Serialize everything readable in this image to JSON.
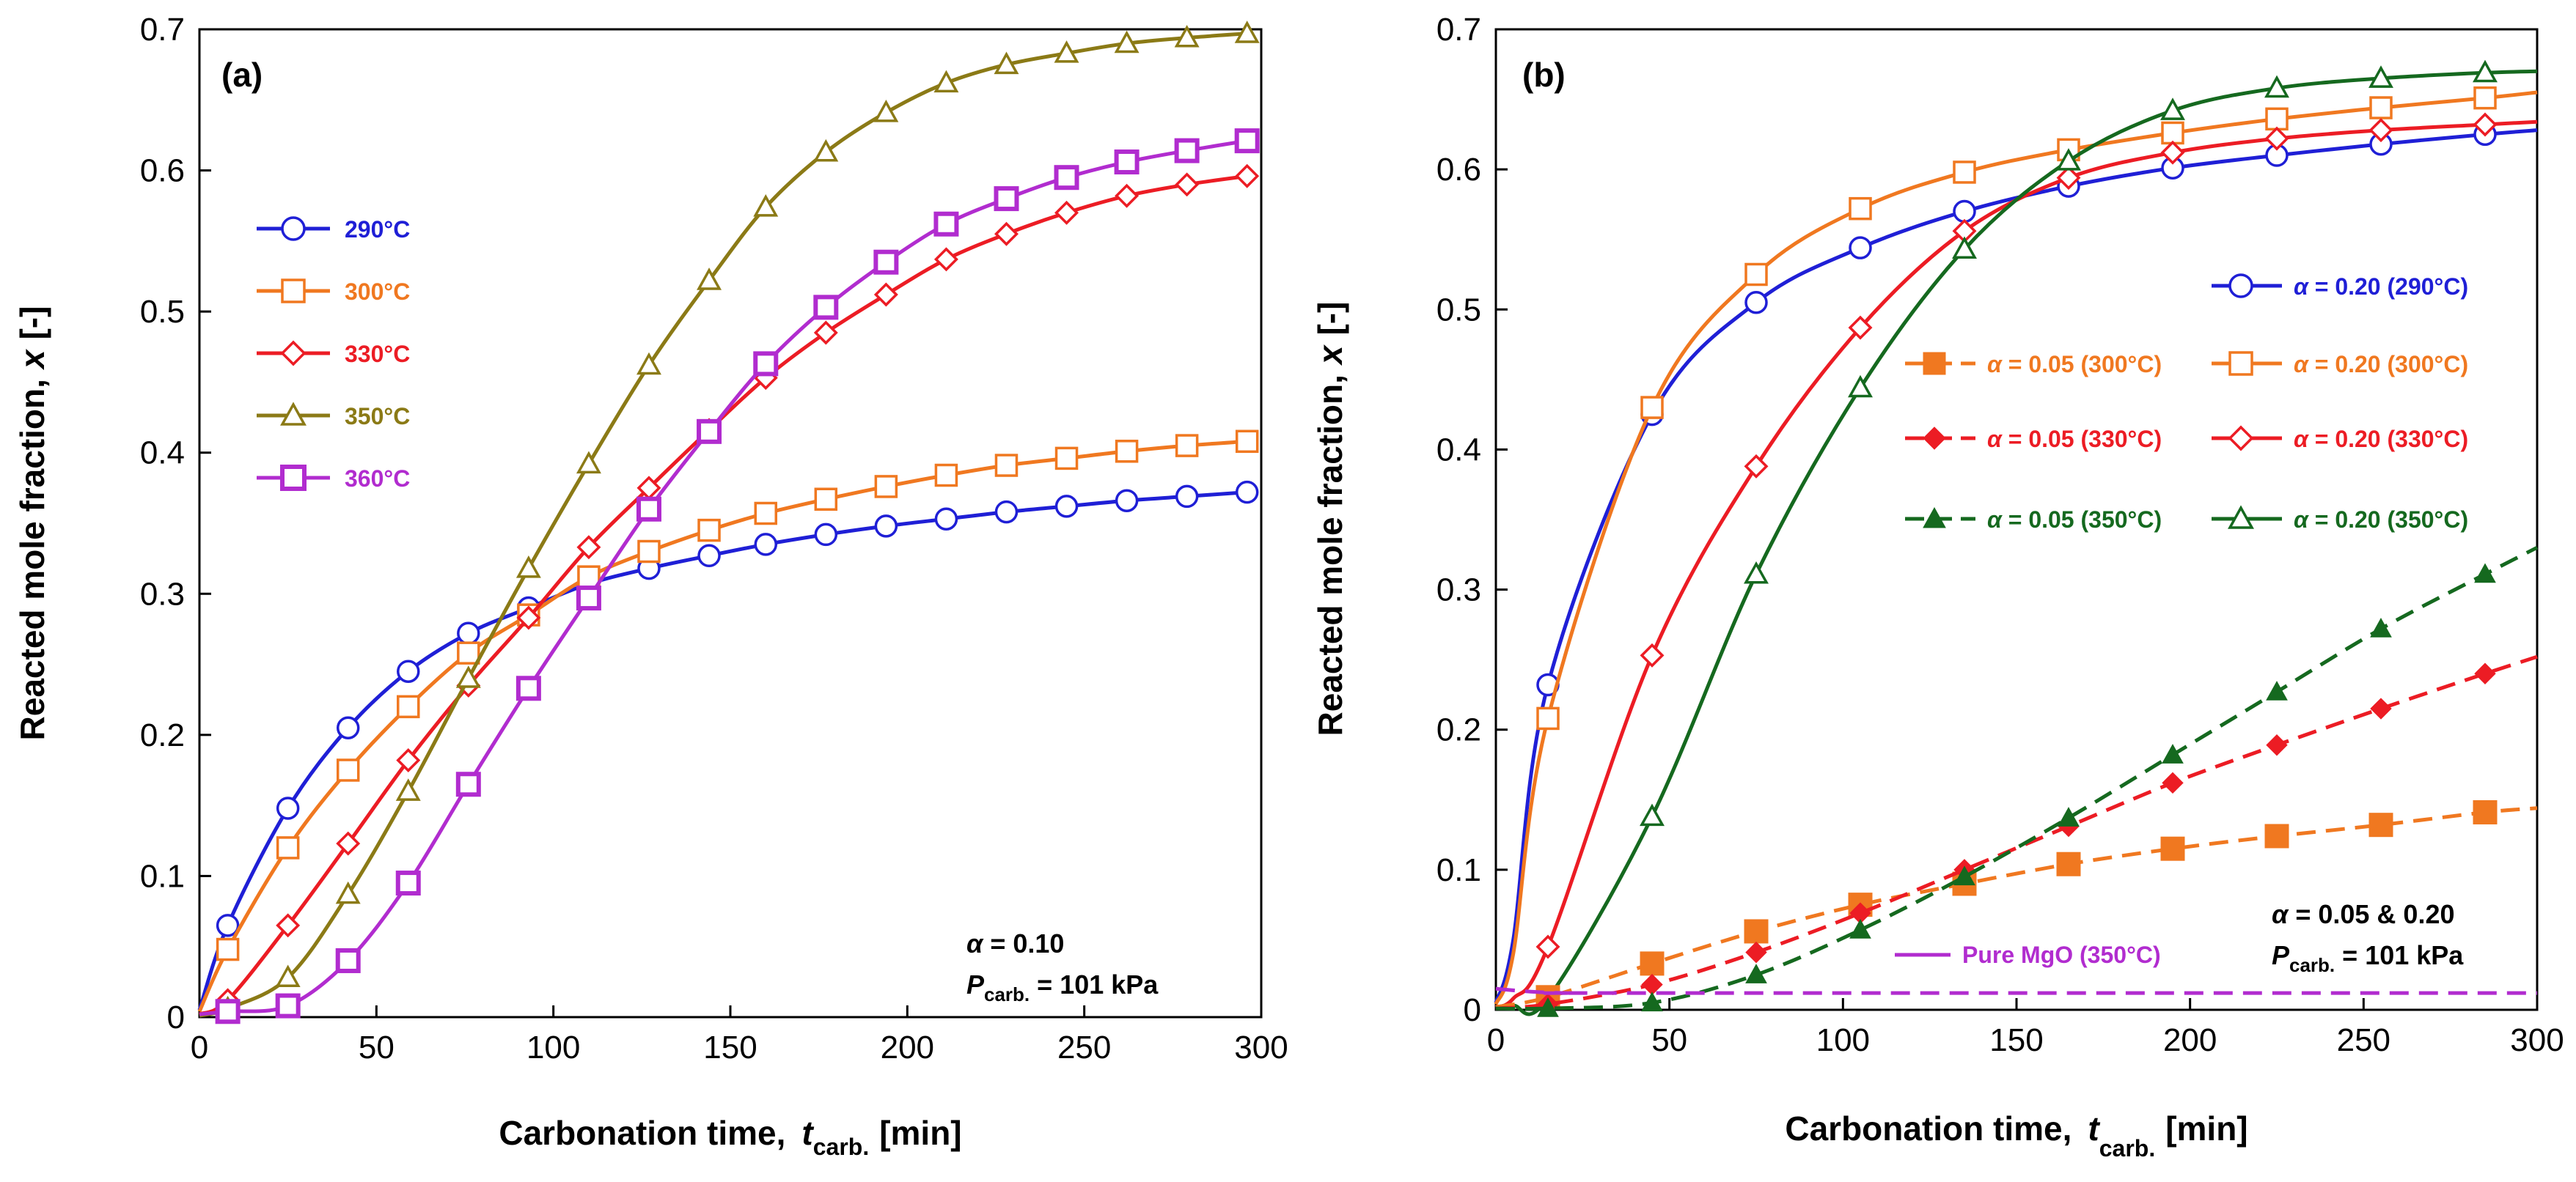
{
  "chart_data": [
    {
      "type": "line",
      "panel_label": "(a)",
      "xlabel_main": "Carbonation time,",
      "xlabel_var": "t",
      "xlabel_sub": "carb.",
      "xlabel_unit": "[min]",
      "ylabel_main": "Reacted mole fraction,",
      "ylabel_var": "x",
      "ylabel_unit": "[-]",
      "xlim": [
        0,
        300
      ],
      "ylim": [
        0,
        0.7
      ],
      "xticks": [
        "0",
        "50",
        "100",
        "150",
        "200",
        "250",
        "300"
      ],
      "yticks": [
        "0",
        "0.1",
        "0.2",
        "0.3",
        "0.4",
        "0.5",
        "0.6",
        "0.7"
      ],
      "annotations": {
        "alpha_symbol": "α",
        "alpha_text": " = 0.10",
        "p_symbol": "P",
        "p_sub": "carb.",
        "p_text": " = 101 kPa"
      },
      "series": [
        {
          "name": "290°C",
          "color": "#1f1fd6",
          "marker": "circle",
          "dash": false,
          "x": [
            0,
            8,
            25,
            42,
            59,
            76,
            93,
            110,
            127,
            144,
            160,
            177,
            194,
            211,
            228,
            245,
            262,
            279,
            296
          ],
          "y": [
            0.005,
            0.065,
            0.148,
            0.205,
            0.245,
            0.272,
            0.29,
            0.307,
            0.318,
            0.327,
            0.335,
            0.342,
            0.348,
            0.353,
            0.358,
            0.362,
            0.366,
            0.369,
            0.372
          ]
        },
        {
          "name": "300°C",
          "color": "#f07820",
          "marker": "square",
          "dash": false,
          "x": [
            0,
            8,
            25,
            42,
            59,
            76,
            93,
            110,
            127,
            144,
            160,
            177,
            194,
            211,
            228,
            245,
            262,
            279,
            296
          ],
          "y": [
            0.004,
            0.048,
            0.12,
            0.175,
            0.22,
            0.258,
            0.285,
            0.312,
            0.33,
            0.345,
            0.357,
            0.367,
            0.376,
            0.384,
            0.391,
            0.396,
            0.401,
            0.405,
            0.408
          ]
        },
        {
          "name": "330°C",
          "color": "#ec1c24",
          "marker": "diamond",
          "dash": false,
          "x": [
            0,
            8,
            25,
            42,
            59,
            76,
            93,
            110,
            127,
            144,
            160,
            177,
            194,
            211,
            228,
            245,
            262,
            279,
            296
          ],
          "y": [
            0.002,
            0.012,
            0.065,
            0.123,
            0.182,
            0.235,
            0.283,
            0.333,
            0.375,
            0.416,
            0.453,
            0.485,
            0.512,
            0.537,
            0.555,
            0.57,
            0.582,
            0.59,
            0.596
          ]
        },
        {
          "name": "350°C",
          "color": "#8b7a16",
          "marker": "triangle",
          "dash": false,
          "x": [
            0,
            8,
            25,
            42,
            59,
            76,
            93,
            110,
            127,
            144,
            160,
            177,
            194,
            211,
            228,
            245,
            262,
            279,
            296
          ],
          "y": [
            0.001,
            0.006,
            0.028,
            0.087,
            0.16,
            0.24,
            0.318,
            0.392,
            0.462,
            0.522,
            0.574,
            0.613,
            0.641,
            0.662,
            0.675,
            0.683,
            0.69,
            0.694,
            0.697
          ]
        },
        {
          "name": "360°C",
          "color": "#b12ccf",
          "marker": "square-thick",
          "dash": false,
          "x": [
            0,
            8,
            25,
            42,
            59,
            76,
            93,
            110,
            127,
            144,
            160,
            177,
            194,
            211,
            228,
            245,
            262,
            279,
            296
          ],
          "y": [
            0.002,
            0.004,
            0.008,
            0.04,
            0.095,
            0.165,
            0.233,
            0.297,
            0.36,
            0.415,
            0.463,
            0.503,
            0.535,
            0.562,
            0.58,
            0.595,
            0.606,
            0.614,
            0.621
          ]
        }
      ]
    },
    {
      "type": "line",
      "panel_label": "(b)",
      "xlabel_main": "Carbonation time,",
      "xlabel_var": "t",
      "xlabel_sub": "carb.",
      "xlabel_unit": "[min]",
      "ylabel_main": "Reacted mole fraction,",
      "ylabel_var": "x",
      "ylabel_unit": "[-]",
      "xlim": [
        0,
        300
      ],
      "ylim": [
        0,
        0.7
      ],
      "xticks": [
        "0",
        "50",
        "100",
        "150",
        "200",
        "250",
        "300"
      ],
      "yticks": [
        "0",
        "0.1",
        "0.2",
        "0.3",
        "0.4",
        "0.5",
        "0.6",
        "0.7"
      ],
      "annotations": {
        "alpha_symbol": "α",
        "alpha_text": " = 0.05 & 0.20",
        "p_symbol": "P",
        "p_sub": "carb.",
        "p_text": " = 101 kPa"
      },
      "series": [
        {
          "name": "α = 0.20 (290°C)",
          "alpha": "α",
          "label_rest": " = 0.20 (290°C)",
          "color": "#1f1fd6",
          "marker": "circle",
          "dash": false,
          "x": [
            0,
            5,
            15,
            45,
            75,
            105,
            135,
            165,
            195,
            225,
            255,
            285,
            300
          ],
          "y": [
            0.005,
            0.05,
            0.232,
            0.425,
            0.505,
            0.544,
            0.57,
            0.588,
            0.601,
            0.61,
            0.618,
            0.625,
            0.628
          ]
        },
        {
          "name": "α = 0.20 (300°C)",
          "alpha": "α",
          "label_rest": " = 0.20 (300°C)",
          "color": "#f07820",
          "marker": "square",
          "dash": false,
          "x": [
            0,
            5,
            15,
            45,
            75,
            105,
            135,
            165,
            195,
            225,
            255,
            285,
            300
          ],
          "y": [
            0.004,
            0.04,
            0.208,
            0.43,
            0.525,
            0.572,
            0.598,
            0.614,
            0.626,
            0.636,
            0.644,
            0.651,
            0.655
          ]
        },
        {
          "name": "α = 0.20 (330°C)",
          "alpha": "α",
          "label_rest": " = 0.20 (330°C)",
          "color": "#ec1c24",
          "marker": "diamond",
          "dash": false,
          "x": [
            0,
            5,
            15,
            45,
            75,
            105,
            135,
            165,
            195,
            225,
            255,
            285,
            300
          ],
          "y": [
            0.002,
            0.008,
            0.045,
            0.253,
            0.388,
            0.487,
            0.556,
            0.594,
            0.612,
            0.622,
            0.628,
            0.632,
            0.634
          ]
        },
        {
          "name": "α = 0.20 (350°C)",
          "alpha": "α",
          "label_rest": " = 0.20 (350°C)",
          "color": "#15691f",
          "marker": "triangle",
          "dash": false,
          "x": [
            0,
            5,
            15,
            45,
            75,
            105,
            135,
            165,
            195,
            225,
            255,
            285,
            300
          ],
          "y": [
            0.001,
            0.003,
            0.008,
            0.138,
            0.311,
            0.444,
            0.543,
            0.606,
            0.642,
            0.658,
            0.665,
            0.669,
            0.67
          ]
        },
        {
          "name": "α = 0.05 (300°C)",
          "alpha": "α",
          "label_rest": " = 0.05 (300°C)",
          "color": "#f07820",
          "marker": "square-filled",
          "dash": true,
          "x": [
            0,
            15,
            45,
            75,
            105,
            135,
            165,
            195,
            225,
            255,
            285,
            300
          ],
          "y": [
            0.002,
            0.009,
            0.033,
            0.056,
            0.075,
            0.09,
            0.104,
            0.115,
            0.124,
            0.132,
            0.141,
            0.144
          ]
        },
        {
          "name": "α = 0.05 (330°C)",
          "alpha": "α",
          "label_rest": " = 0.05 (330°C)",
          "color": "#ec1c24",
          "marker": "diamond-filled",
          "dash": true,
          "x": [
            0,
            15,
            45,
            75,
            105,
            135,
            165,
            195,
            225,
            255,
            285,
            300
          ],
          "y": [
            0.001,
            0.004,
            0.018,
            0.041,
            0.069,
            0.1,
            0.131,
            0.162,
            0.189,
            0.215,
            0.24,
            0.252
          ]
        },
        {
          "name": "α = 0.05 (350°C)",
          "alpha": "α",
          "label_rest": " = 0.05 (350°C)",
          "color": "#15691f",
          "marker": "triangle-filled",
          "dash": true,
          "x": [
            0,
            15,
            45,
            75,
            105,
            135,
            165,
            195,
            225,
            255,
            285,
            300
          ],
          "y": [
            0.001,
            0.001,
            0.005,
            0.025,
            0.057,
            0.095,
            0.137,
            0.182,
            0.227,
            0.272,
            0.311,
            0.33
          ]
        },
        {
          "name": "Pure MgO (350°C)",
          "color": "#b12ccf",
          "marker": "none",
          "dash": true,
          "x": [
            0,
            10,
            20,
            40,
            300
          ],
          "y": [
            0.015,
            0.013,
            0.012,
            0.012,
            0.012
          ]
        }
      ]
    }
  ]
}
